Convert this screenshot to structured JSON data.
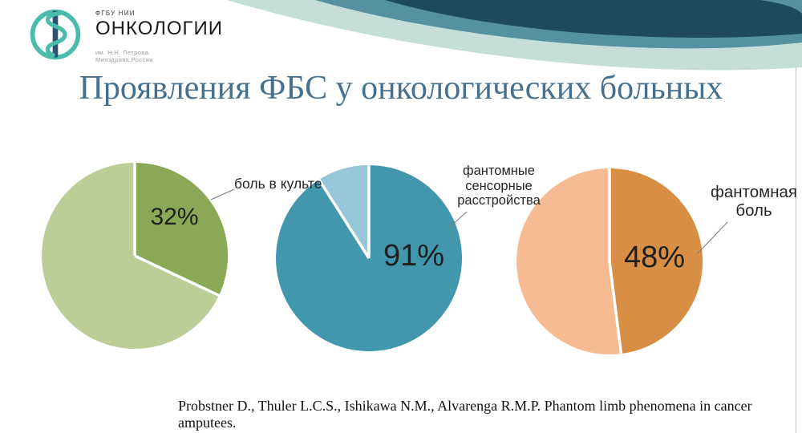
{
  "logo": {
    "org_small": "ФГБУ НИИ",
    "org_large": "ОНКОЛОГИИ",
    "sub_line1": "им. Н.Н. Петрова",
    "sub_line2": "Минздрава России"
  },
  "title": "Проявления ФБС у онкологических больных",
  "citation": "Probstner D., Thuler L.C.S., Ishikawa N.M., Alvarenga R.M.P. Phantom limb phenomena in cancer amputees.",
  "charts": [
    {
      "annotation": "боль в культе",
      "percent_label": "32%"
    },
    {
      "annotation_lines": [
        "фантомные",
        "сенсорные",
        "расстройства"
      ],
      "percent_label": "91%"
    },
    {
      "annotation_lines": [
        "фантомная",
        "боль"
      ],
      "percent_label": "48%"
    }
  ],
  "chart_data": [
    {
      "type": "pie",
      "title": "боль в культе",
      "slices": [
        {
          "label": "боль в культе",
          "value": 32,
          "color": "#8aa855"
        },
        {
          "label": "",
          "value": 68,
          "color": "#bccd97"
        }
      ],
      "start_angle": "12 o'clock, clockwise",
      "data_label": "32%"
    },
    {
      "type": "pie",
      "title": "фантомные сенсорные расстройства",
      "slices": [
        {
          "label": "фантомные сенсорные расстройства",
          "value": 91,
          "color": "#4397ad"
        },
        {
          "label": "",
          "value": 9,
          "color": "#98c6d9"
        }
      ],
      "start_angle": "12 o'clock, clockwise",
      "data_label": "91%"
    },
    {
      "type": "pie",
      "title": "фантомная боль",
      "slices": [
        {
          "label": "фантомная боль",
          "value": 48,
          "color": "#d98e45"
        },
        {
          "label": "",
          "value": 52,
          "color": "#f7bb94"
        }
      ],
      "start_angle": "12 o'clock, clockwise",
      "data_label": "48%"
    }
  ],
  "colors": {
    "title_text": "#45708f",
    "wave_navy": "#1f4a5e",
    "wave_teal": "#5591a0",
    "wave_mint": "#c6ded8",
    "logo_teal": "#4bbcab",
    "logo_rod_navy": "#2d4f70",
    "leader_line": "#7a7a7a",
    "percent_text": "#1f1f1f"
  }
}
